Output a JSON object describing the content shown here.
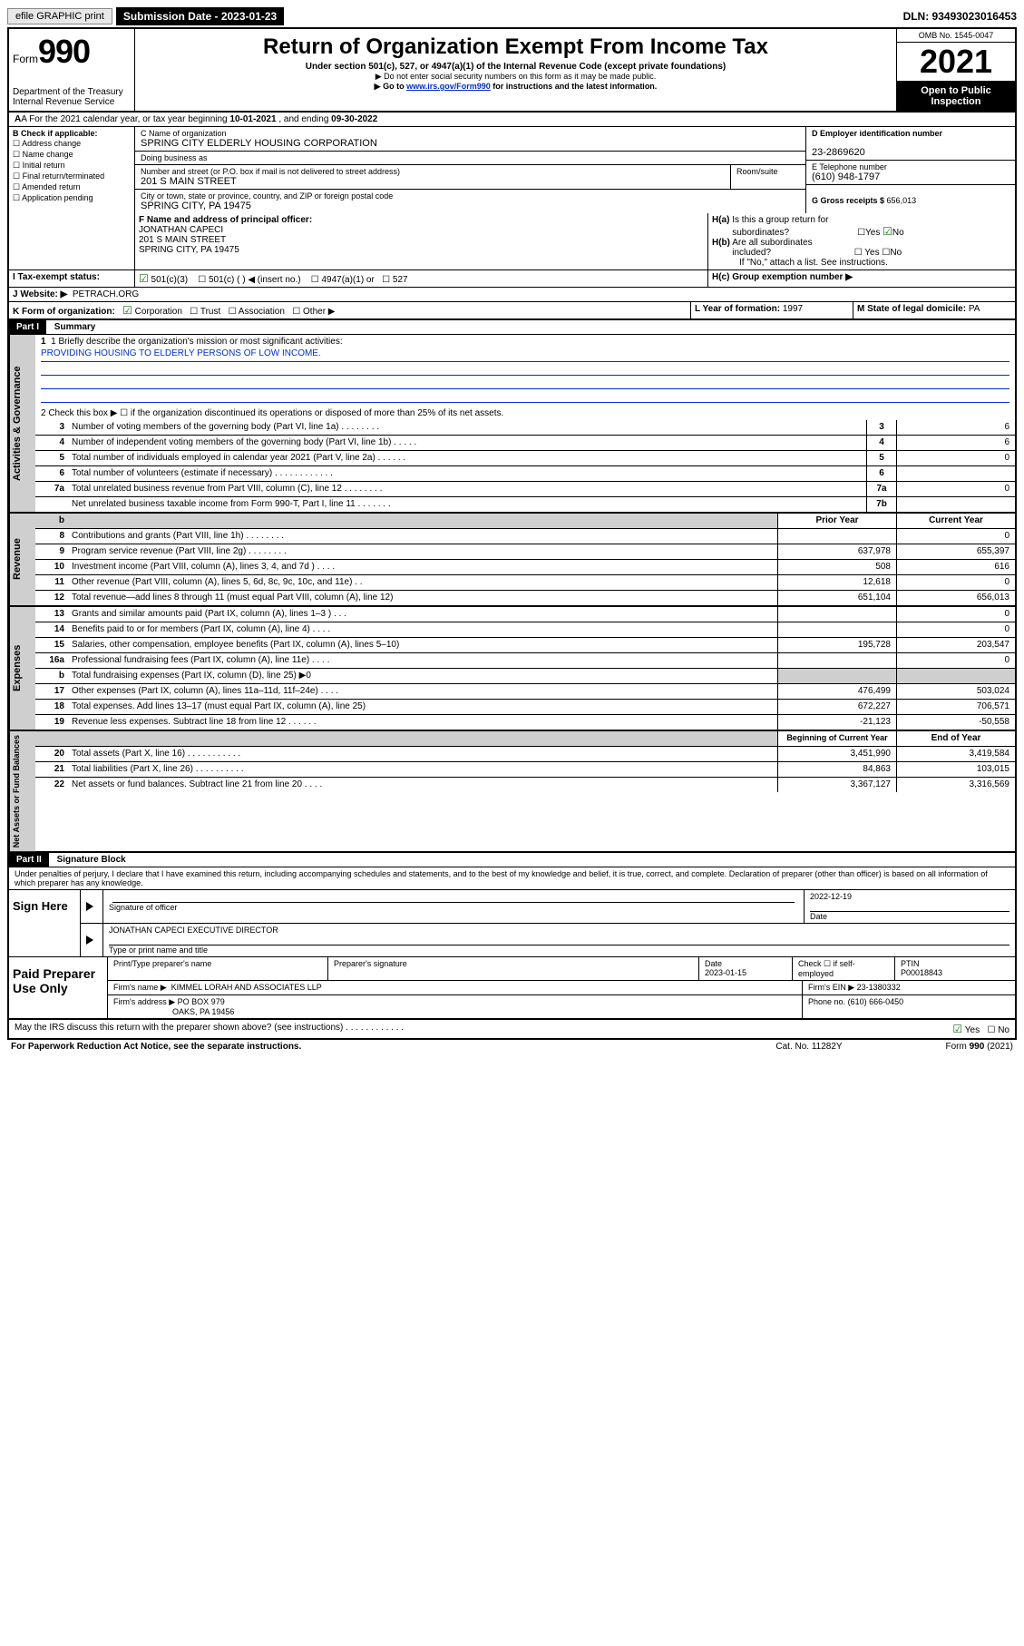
{
  "topbar": {
    "efile": "efile GRAPHIC print",
    "subdate_label": "Submission Date - 2023-01-23",
    "dln": "DLN: 93493023016453"
  },
  "header": {
    "form_label": "Form",
    "form_number": "990",
    "dept": "Department of the Treasury Internal Revenue Service",
    "title": "Return of Organization Exempt From Income Tax",
    "sub": "Under section 501(c), 527, or 4947(a)(1) of the Internal Revenue Code (except private foundations)",
    "note1": "▶ Do not enter social security numbers on this form as it may be made public.",
    "note2a": "▶ Go to ",
    "note2_link": "www.irs.gov/Form990",
    "note2b": " for instructions and the latest information.",
    "omb": "OMB No. 1545-0047",
    "taxyear": "2021",
    "open1": "Open to Public",
    "open2": "Inspection"
  },
  "period": {
    "label_a": "A For the 2021 calendar year, or tax year beginning ",
    "begin": "10-01-2021",
    "label_b": " , and ending ",
    "end": "09-30-2022"
  },
  "sectionB": {
    "title": "B Check if applicable:",
    "items": [
      "Address change",
      "Name change",
      "Initial return",
      "Final return/terminated",
      "Amended return",
      "Application pending"
    ]
  },
  "sectionC": {
    "name_label": "C Name of organization",
    "name": "SPRING CITY ELDERLY HOUSING CORPORATION",
    "dba_label": "Doing business as",
    "addr_label": "Number and street (or P.O. box if mail is not delivered to street address)",
    "room_label": "Room/suite",
    "addr": "201 S MAIN STREET",
    "city_label": "City or town, state or province, country, and ZIP or foreign postal code",
    "city": "SPRING CITY, PA  19475"
  },
  "sectionD": {
    "ein_label": "D Employer identification number",
    "ein": "23-2869620",
    "phone_label": "E Telephone number",
    "phone": "(610) 948-1797",
    "gross_label": "G Gross receipts $ ",
    "gross": "656,013"
  },
  "sectionF": {
    "label": "F Name and address of principal officer:",
    "name": "JONATHAN CAPECI",
    "addr1": "201 S MAIN STREET",
    "addr2": "SPRING CITY, PA  19475"
  },
  "sectionH": {
    "a_label": "H(a)  Is this a group return for subordinates?",
    "yes": "Yes",
    "no": "No",
    "b_label": "H(b)  Are all subordinates included?",
    "b_note": "If \"No,\" attach a list. See instructions.",
    "c_label": "H(c)  Group exemption number ▶"
  },
  "rowI": {
    "label": "I  Tax-exempt status:",
    "opt1": "501(c)(3)",
    "opt2": "501(c) (   ) ◀ (insert no.)",
    "opt3": "4947(a)(1) or",
    "opt4": "527"
  },
  "rowJ": {
    "label": "J  Website: ▶",
    "val": "PETRACH.ORG"
  },
  "rowK": {
    "label": "K Form of organization:",
    "opts": [
      "Corporation",
      "Trust",
      "Association",
      "Other ▶"
    ],
    "L_label": "L Year of formation: ",
    "L_val": "1997",
    "M_label": "M State of legal domicile: ",
    "M_val": "PA"
  },
  "part1": {
    "header": "Part I",
    "title": "Summary",
    "q1_label": "1  Briefly describe the organization's mission or most significant activities:",
    "q1_val": "PROVIDING HOUSING TO ELDERLY PERSONS OF LOW INCOME.",
    "q2": "2   Check this box ▶ ☐  if the organization discontinued its operations or disposed of more than 25% of its net assets.",
    "gov_lines": [
      {
        "n": "3",
        "d": "Number of voting members of the governing body (Part VI, line 1a)   .    .    .    .    .    .    .    .",
        "k": "3",
        "v": "6"
      },
      {
        "n": "4",
        "d": "Number of independent voting members of the governing body (Part VI, line 1b)   .    .    .    .    .",
        "k": "4",
        "v": "6"
      },
      {
        "n": "5",
        "d": "Total number of individuals employed in calendar year 2021 (Part V, line 2a)   .    .    .    .    .    .",
        "k": "5",
        "v": "0"
      },
      {
        "n": "6",
        "d": "Total number of volunteers (estimate if necessary)   .    .    .    .    .    .    .    .    .    .    .    .",
        "k": "6",
        "v": ""
      },
      {
        "n": "7a",
        "d": "Total unrelated business revenue from Part VIII, column (C), line 12   .    .    .    .    .    .    .    .",
        "k": "7a",
        "v": "0"
      },
      {
        "n": "",
        "d": "Net unrelated business taxable income from Form 990-T, Part I, line 11   .    .    .    .    .    .    .",
        "k": "7b",
        "v": ""
      }
    ],
    "col_prior": "Prior Year",
    "col_current": "Current Year",
    "rev_lines": [
      {
        "n": "8",
        "d": "Contributions and grants (Part VIII, line 1h)   .    .    .    .    .    .    .    .",
        "p": "",
        "c": "0"
      },
      {
        "n": "9",
        "d": "Program service revenue (Part VIII, line 2g)   .    .    .    .    .    .    .    .",
        "p": "637,978",
        "c": "655,397"
      },
      {
        "n": "10",
        "d": "Investment income (Part VIII, column (A), lines 3, 4, and 7d )   .    .    .    .",
        "p": "508",
        "c": "616"
      },
      {
        "n": "11",
        "d": "Other revenue (Part VIII, column (A), lines 5, 6d, 8c, 9c, 10c, and 11e)   .    .",
        "p": "12,618",
        "c": "0"
      },
      {
        "n": "12",
        "d": "Total revenue—add lines 8 through 11 (must equal Part VIII, column (A), line 12)",
        "p": "651,104",
        "c": "656,013"
      }
    ],
    "exp_lines": [
      {
        "n": "13",
        "d": "Grants and similar amounts paid (Part IX, column (A), lines 1–3 )   .    .    .",
        "p": "",
        "c": "0"
      },
      {
        "n": "14",
        "d": "Benefits paid to or for members (Part IX, column (A), line 4)   .    .    .    .",
        "p": "",
        "c": "0"
      },
      {
        "n": "15",
        "d": "Salaries, other compensation, employee benefits (Part IX, column (A), lines 5–10)",
        "p": "195,728",
        "c": "203,547"
      },
      {
        "n": "16a",
        "d": "Professional fundraising fees (Part IX, column (A), line 11e)   .    .    .    .",
        "p": "",
        "c": "0"
      },
      {
        "n": "b",
        "d": "Total fundraising expenses (Part IX, column (D), line 25) ▶0",
        "p": "SHADE",
        "c": "SHADE"
      },
      {
        "n": "17",
        "d": "Other expenses (Part IX, column (A), lines 11a–11d, 11f–24e)   .    .    .    .",
        "p": "476,499",
        "c": "503,024"
      },
      {
        "n": "18",
        "d": "Total expenses. Add lines 13–17 (must equal Part IX, column (A), line 25)",
        "p": "672,227",
        "c": "706,571"
      },
      {
        "n": "19",
        "d": "Revenue less expenses. Subtract line 18 from line 12   .    .    .    .    .    .",
        "p": "-21,123",
        "c": "-50,558"
      }
    ],
    "col_begin": "Beginning of Current Year",
    "col_end": "End of Year",
    "net_lines": [
      {
        "n": "20",
        "d": "Total assets (Part X, line 16)   .    .    .    .    .    .    .    .    .    .    .",
        "p": "3,451,990",
        "c": "3,419,584"
      },
      {
        "n": "21",
        "d": "Total liabilities (Part X, line 26)   .    .    .    .    .    .    .    .    .    .",
        "p": "84,863",
        "c": "103,015"
      },
      {
        "n": "22",
        "d": "Net assets or fund balances. Subtract line 21 from line 20   .    .    .    .",
        "p": "3,367,127",
        "c": "3,316,569"
      }
    ],
    "side_gov": "Activities & Governance",
    "side_rev": "Revenue",
    "side_exp": "Expenses",
    "side_net": "Net Assets or Fund Balances"
  },
  "part2": {
    "header": "Part II",
    "title": "Signature Block",
    "decl": "Under penalties of perjury, I declare that I have examined this return, including accompanying schedules and statements, and to the best of my knowledge and belief, it is true, correct, and complete. Declaration of preparer (other than officer) is based on all information of which preparer has any knowledge.",
    "sign_here": "Sign Here",
    "sig_officer": "Signature of officer",
    "sig_date": "Date",
    "sig_date_val": "2022-12-19",
    "officer_name": "JONATHAN CAPECI  EXECUTIVE DIRECTOR",
    "type_name": "Type or print name and title",
    "paid": "Paid Preparer Use Only",
    "prep_name_label": "Print/Type preparer's name",
    "prep_sig_label": "Preparer's signature",
    "prep_date_label": "Date",
    "prep_date_val": "2023-01-15",
    "check_if": "Check ☐ if self-employed",
    "ptin_label": "PTIN",
    "ptin": "P00018843",
    "firm_name_label": "Firm's name    ▶",
    "firm_name": "KIMMEL LORAH AND ASSOCIATES LLP",
    "firm_ein_label": "Firm's EIN ▶",
    "firm_ein": "23-1380332",
    "firm_addr_label": "Firm's address ▶",
    "firm_addr1": "PO BOX 979",
    "firm_addr2": "OAKS, PA  19456",
    "firm_phone_label": "Phone no.",
    "firm_phone": "(610) 666-0450",
    "may_irs": "May the IRS discuss this return with the preparer shown above? (see instructions)   .    .    .    .    .    .    .    .    .    .    .    .",
    "yes": "Yes",
    "no": "No"
  },
  "footer": {
    "f1": "For Paperwork Reduction Act Notice, see the separate instructions.",
    "f2": "Cat. No. 11282Y",
    "f3": "Form 990 (2021)"
  }
}
